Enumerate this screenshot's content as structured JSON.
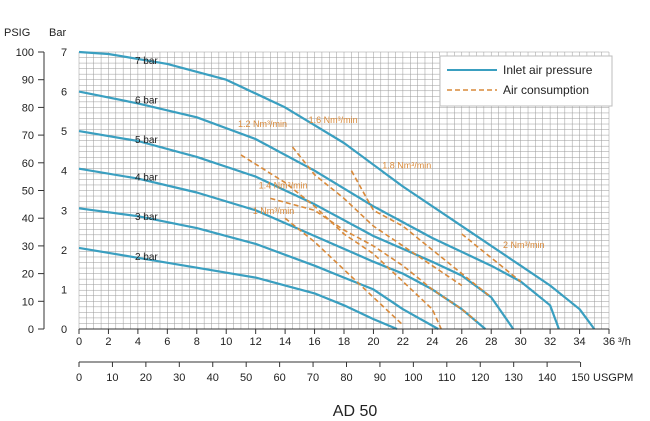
{
  "chart_data": {
    "type": "line",
    "title": "AD 50",
    "colors": {
      "pressure": "#3a9fc0",
      "air": "#d98a3a",
      "grid": "#9a9a9a"
    },
    "left_axis_1": {
      "label": "PSIG",
      "ticks": [
        0,
        10,
        20,
        30,
        40,
        50,
        60,
        70,
        80,
        90,
        100
      ],
      "range": [
        0,
        100
      ]
    },
    "left_axis_2": {
      "label": "Bar",
      "ticks": [
        0,
        1,
        2,
        3,
        4,
        5,
        6,
        7
      ],
      "range": [
        0,
        7
      ]
    },
    "bottom_axis_1": {
      "unit": "³/h",
      "ticks": [
        0,
        2,
        4,
        6,
        8,
        10,
        12,
        14,
        16,
        18,
        20,
        22,
        24,
        26,
        28,
        30,
        32,
        34,
        36
      ],
      "range": [
        0,
        36
      ]
    },
    "bottom_axis_2": {
      "unit": "USGPM",
      "ticks": [
        0,
        10,
        20,
        30,
        40,
        50,
        60,
        70,
        80,
        90,
        100,
        110,
        120,
        130,
        140,
        150
      ]
    },
    "legend": {
      "placement": "top-right",
      "items": [
        "Inlet air pressure",
        "Air consumption"
      ]
    },
    "series": [
      {
        "name": "Inlet air pressure",
        "label": "7 bar",
        "style": "solid",
        "points": [
          [
            0,
            7
          ],
          [
            2,
            6.95
          ],
          [
            6,
            6.7
          ],
          [
            10,
            6.3
          ],
          [
            14,
            5.6
          ],
          [
            18,
            4.7
          ],
          [
            22,
            3.6
          ],
          [
            26,
            2.6
          ],
          [
            30,
            1.6
          ],
          [
            32,
            1.1
          ],
          [
            34,
            0.5
          ],
          [
            35,
            0
          ]
        ]
      },
      {
        "name": "Inlet air pressure",
        "label": "6 bar",
        "style": "solid",
        "points": [
          [
            0,
            6
          ],
          [
            4,
            5.7
          ],
          [
            8,
            5.35
          ],
          [
            12,
            4.8
          ],
          [
            16,
            4.0
          ],
          [
            20,
            3.1
          ],
          [
            24,
            2.3
          ],
          [
            28,
            1.6
          ],
          [
            30,
            1.2
          ],
          [
            32,
            0.6
          ],
          [
            32.6,
            0
          ]
        ]
      },
      {
        "name": "Inlet air pressure",
        "label": "5 bar",
        "style": "solid",
        "points": [
          [
            0,
            5
          ],
          [
            4,
            4.75
          ],
          [
            8,
            4.35
          ],
          [
            12,
            3.85
          ],
          [
            16,
            3.15
          ],
          [
            20,
            2.35
          ],
          [
            24,
            1.7
          ],
          [
            26,
            1.35
          ],
          [
            28,
            0.8
          ],
          [
            29.5,
            0
          ]
        ]
      },
      {
        "name": "Inlet air pressure",
        "label": "4 bar",
        "style": "solid",
        "points": [
          [
            0,
            4.05
          ],
          [
            4,
            3.8
          ],
          [
            8,
            3.45
          ],
          [
            12,
            3.0
          ],
          [
            16,
            2.35
          ],
          [
            20,
            1.7
          ],
          [
            22,
            1.4
          ],
          [
            24,
            1.0
          ],
          [
            26,
            0.5
          ],
          [
            27.6,
            0
          ]
        ]
      },
      {
        "name": "Inlet air pressure",
        "label": "3 bar",
        "style": "solid",
        "points": [
          [
            0,
            3.05
          ],
          [
            4,
            2.85
          ],
          [
            8,
            2.55
          ],
          [
            12,
            2.15
          ],
          [
            16,
            1.6
          ],
          [
            18,
            1.3
          ],
          [
            20,
            1.0
          ],
          [
            22,
            0.5
          ],
          [
            24.4,
            0
          ]
        ]
      },
      {
        "name": "Inlet air pressure",
        "label": "2 bar",
        "style": "solid",
        "points": [
          [
            0,
            2.05
          ],
          [
            4,
            1.8
          ],
          [
            8,
            1.55
          ],
          [
            12,
            1.3
          ],
          [
            16,
            0.9
          ],
          [
            18,
            0.6
          ],
          [
            20,
            0.25
          ],
          [
            21.6,
            0
          ]
        ]
      },
      {
        "name": "Air consumption",
        "label": "1 Nm³/min",
        "style": "dashed",
        "points": [
          [
            14,
            2.8
          ],
          [
            16,
            2.2
          ],
          [
            18,
            1.5
          ],
          [
            20,
            0.8
          ],
          [
            22,
            0.1
          ]
        ]
      },
      {
        "name": "Air consumption",
        "label": "1.2 Nm³/min",
        "style": "dashed",
        "points": [
          [
            11,
            4.4
          ],
          [
            14,
            3.7
          ],
          [
            16,
            3.1
          ],
          [
            18,
            2.4
          ],
          [
            20,
            1.9
          ],
          [
            22,
            1.2
          ],
          [
            24,
            0.5
          ],
          [
            24.6,
            0
          ]
        ]
      },
      {
        "name": "Air consumption",
        "label": "1.4 Nm³/min",
        "style": "dashed",
        "points": [
          [
            13,
            3.3
          ],
          [
            16,
            3.0
          ],
          [
            18,
            2.5
          ],
          [
            20,
            2.1
          ],
          [
            22,
            1.6
          ],
          [
            24,
            1.0
          ],
          [
            26,
            0.5
          ],
          [
            27,
            0.2
          ]
        ]
      },
      {
        "name": "Air consumption",
        "label": "1.6 Nm³/min",
        "style": "dashed",
        "points": [
          [
            14.5,
            4.6
          ],
          [
            16,
            3.9
          ],
          [
            18,
            3.3
          ],
          [
            20,
            2.6
          ],
          [
            22,
            2.1
          ],
          [
            24,
            1.6
          ],
          [
            26,
            1.1
          ]
        ]
      },
      {
        "name": "Air consumption",
        "label": "1.8 Nm³/min",
        "style": "dashed",
        "points": [
          [
            18.5,
            4.0
          ],
          [
            20,
            3.0
          ],
          [
            22,
            2.6
          ],
          [
            24,
            2.0
          ],
          [
            26,
            1.4
          ],
          [
            28,
            0.8
          ]
        ]
      },
      {
        "name": "Air consumption",
        "label": "2 Nm³/min",
        "style": "dashed",
        "points": [
          [
            26,
            2.4
          ],
          [
            28,
            1.8
          ],
          [
            30,
            1.2
          ]
        ]
      }
    ],
    "curve_labels": [
      {
        "text": "7 bar",
        "at": [
          3.8,
          6.7
        ]
      },
      {
        "text": "6 bar",
        "at": [
          3.8,
          5.7
        ]
      },
      {
        "text": "5 bar",
        "at": [
          3.8,
          4.7
        ]
      },
      {
        "text": "4 bar",
        "at": [
          3.8,
          3.75
        ]
      },
      {
        "text": "3 bar",
        "at": [
          3.8,
          2.75
        ]
      },
      {
        "text": "2 bar",
        "at": [
          3.8,
          1.75
        ]
      },
      {
        "text": "1.2 Nm³/min",
        "at": [
          10.8,
          5.1
        ]
      },
      {
        "text": "1.6 Nm³/min",
        "at": [
          15.6,
          5.2
        ]
      },
      {
        "text": "1.8 Nm³/min",
        "at": [
          20.6,
          4.05
        ]
      },
      {
        "text": "1.4 Nm³/min",
        "at": [
          12.2,
          3.55
        ]
      },
      {
        "text": "1 Nm³/min",
        "at": [
          11.8,
          2.9
        ]
      },
      {
        "text": "2 Nm³/min",
        "at": [
          28.8,
          2.05
        ]
      }
    ]
  }
}
